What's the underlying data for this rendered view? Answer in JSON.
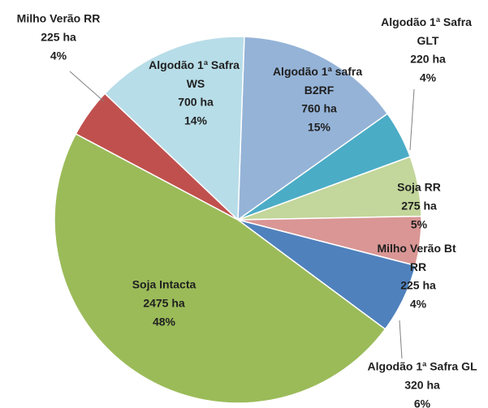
{
  "chart_data": {
    "type": "pie",
    "categories": [
      "Algodão 1ª safra B2RF",
      "Algodão 1ª Safra GLT",
      "Soja RR",
      "Milho Verão Bt RR",
      "Algodão 1ª Safra GL",
      "Soja Intacta",
      "Milho Verão RR",
      "Algodão 1ª Safra WS"
    ],
    "values": [
      760,
      220,
      275,
      225,
      320,
      2475,
      225,
      700
    ],
    "value_labels": [
      "760 ha",
      "220 ha",
      "275 ha",
      "225 ha",
      "320 ha",
      "2475 ha",
      "225 ha",
      "700 ha"
    ],
    "percentages": [
      15,
      4,
      5,
      4,
      6,
      48,
      4,
      14
    ],
    "percentage_labels": [
      "15%",
      "4%",
      "5%",
      "4%",
      "6%",
      "48%",
      "4%",
      "14%"
    ],
    "colors": [
      "#95b3d7",
      "#4bacc6",
      "#c3d69b",
      "#d99694",
      "#4f81bd",
      "#9bbb59",
      "#c0504d",
      "#b7dde8"
    ]
  }
}
